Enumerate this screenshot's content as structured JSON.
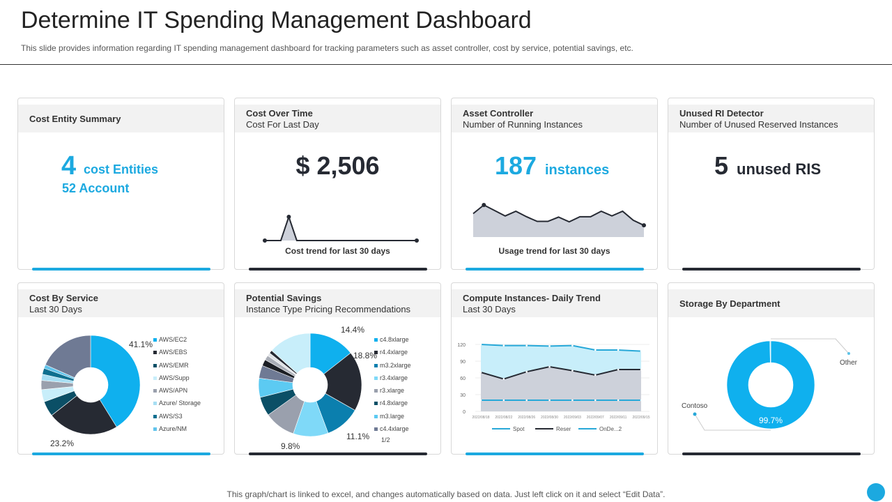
{
  "header": {
    "title": "Determine IT Spending Management Dashboard",
    "subtitle": "This slide provides information regarding IT spending management dashboard for tracking parameters such as asset controller, cost by service, potential savings, etc."
  },
  "colors": {
    "accent": "#1ca9e0",
    "dark": "#262a33",
    "gray": "#cdd1da",
    "light": "#c8eefa"
  },
  "cards": {
    "entity": {
      "title": "Cost Entity Summary",
      "count": "4",
      "count_label": "cost Entities",
      "accounts": "52 Account"
    },
    "cost_time": {
      "title": "Cost Over Time",
      "subtitle": "Cost For Last Day",
      "value": "$ 2,506",
      "caption": "Cost trend for last 30 days",
      "trend": [
        0,
        0,
        0,
        2.2,
        0,
        0,
        0,
        0,
        0,
        0,
        0,
        0,
        0,
        0,
        0,
        0,
        0,
        0,
        0,
        0
      ]
    },
    "asset": {
      "title": "Asset Controller",
      "subtitle": "Number of Running Instances",
      "value": "187",
      "unit": "instances",
      "caption": "Usage trend for last 30 days",
      "trend": [
        6,
        8.2,
        6.8,
        5.4,
        6.6,
        5.2,
        4,
        4,
        5.1,
        3.9,
        5.2,
        5.2,
        6.6,
        5.4,
        6.6,
        4.3,
        3
      ]
    },
    "unused": {
      "title": "Unused RI Detector",
      "subtitle": "Number of Unused Reserved Instances",
      "value": "5",
      "unit": "unused RIS"
    },
    "service": {
      "title": "Cost By Service",
      "subtitle": "Last 30 Days",
      "labels": {
        "ec2": "41.1%",
        "ebs": "23.2%"
      }
    },
    "savings": {
      "title": "Potential Savings",
      "subtitle": "Instance Type Pricing Recommendations",
      "labels": {
        "a": "14.4%",
        "b": "18.8%",
        "c": "11.1%",
        "d": "9.8%"
      },
      "legend_page": "1/2"
    },
    "compute": {
      "title": "Compute Instances- Daily Trend",
      "subtitle": "Last 30 Days"
    },
    "storage": {
      "title": "Storage By Department",
      "labels": {
        "other": "Other",
        "contoso": "Contoso",
        "pct": "99.7%"
      }
    }
  },
  "chart_data": [
    {
      "type": "pie",
      "title": "Cost By Service",
      "series": [
        {
          "name": "AWS/EC2",
          "value": 41.1,
          "color": "#0fb0ee"
        },
        {
          "name": "AWS/EBS",
          "value": 23.2,
          "color": "#262a33"
        },
        {
          "name": "AWS/EMR",
          "value": 5,
          "color": "#0b4f66"
        },
        {
          "name": "AWS/Supp",
          "value": 4,
          "color": "#c8eefa"
        },
        {
          "name": "AWS/APN",
          "value": 3,
          "color": "#9aa0ad"
        },
        {
          "name": "Azure/ Storage",
          "value": 2,
          "color": "#a7def3"
        },
        {
          "name": "AWS/S3",
          "value": 2,
          "color": "#0e6f8f"
        },
        {
          "name": "Azure/NM",
          "value": 1.2,
          "color": "#62c4ec"
        },
        {
          "value": 18.3,
          "color": "#6f7a94"
        }
      ]
    },
    {
      "type": "pie",
      "title": "Potential Savings",
      "series": [
        {
          "name": "c4.8xlarge",
          "value": 14.4,
          "color": "#0fb0ee"
        },
        {
          "name": "r4.4xlarge",
          "value": 18.8,
          "color": "#262a33"
        },
        {
          "name": "m3.2xlarge",
          "value": 11.1,
          "color": "#0b7fae"
        },
        {
          "name": "r3.4xlarge",
          "value": 11,
          "color": "#7fd9f8"
        },
        {
          "name": "r3.xlarge",
          "value": 9.8,
          "color": "#9aa0ad"
        },
        {
          "name": "r4.8xlarge",
          "value": 6,
          "color": "#0b4f66"
        },
        {
          "name": "m3.large",
          "value": 6,
          "color": "#5ccaf2"
        },
        {
          "name": "c4.4xlarge",
          "value": 4,
          "color": "#6f7a94"
        },
        {
          "value": 2,
          "color": "#1b1e24"
        },
        {
          "value": 1.5,
          "color": "#a9adb6"
        },
        {
          "value": 1,
          "color": "#dfe2e6"
        },
        {
          "value": 1,
          "color": "#262a33"
        },
        {
          "value": 13.4,
          "color": "#c8eefa"
        }
      ]
    },
    {
      "type": "area",
      "title": "Compute Instances- Daily Trend",
      "x": [
        "2022/08/18",
        "2022/08/22",
        "2022/08/26",
        "2022/08/30",
        "2022/09/03",
        "2022/09/07",
        "2022/09/11",
        "2022/09/15"
      ],
      "ylim": [
        0,
        120
      ],
      "yticks": [
        0,
        30,
        60,
        90,
        120
      ],
      "grid": true,
      "legend": "bottom",
      "series": [
        {
          "name": "Spot",
          "values": [
            20,
            20,
            20,
            20,
            20,
            20,
            20,
            20
          ],
          "color": "#27a8d8"
        },
        {
          "name": "Reser",
          "values": [
            70,
            58,
            71,
            80,
            73,
            65,
            75,
            75
          ],
          "color": "#262a33"
        },
        {
          "name": "OnDe...2",
          "values": [
            120,
            118,
            118,
            117,
            118,
            110,
            110,
            108
          ],
          "color": "#27a8d8"
        }
      ]
    },
    {
      "type": "pie",
      "title": "Storage By Department",
      "series": [
        {
          "name": "Contoso",
          "value": 99.7,
          "color": "#0fb0ee"
        },
        {
          "name": "Other",
          "value": 0.3,
          "color": "#c8eefa"
        }
      ]
    }
  ],
  "footer": "This graph/chart is linked to excel,  and changes automatically based on data. Just left click on it and select “Edit Data”."
}
